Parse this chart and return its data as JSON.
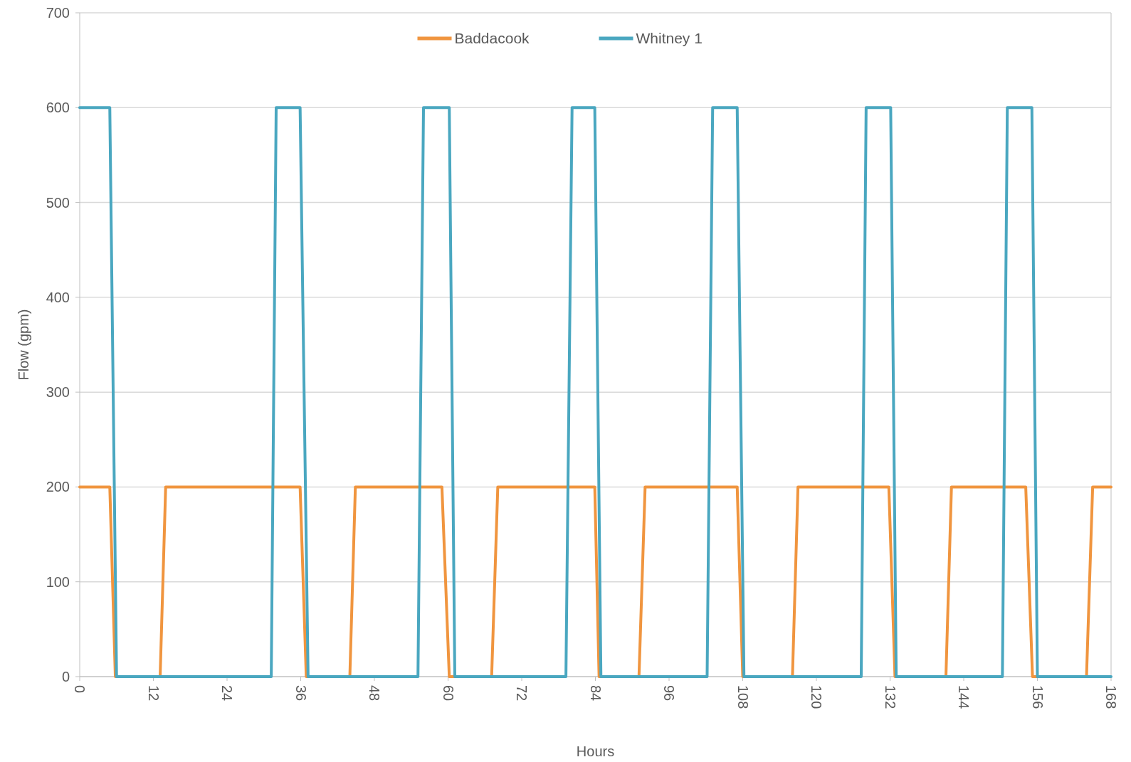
{
  "chart_data": {
    "type": "line",
    "xlabel": "Hours",
    "ylabel": "Flow (gpm)",
    "xlim": [
      0,
      168
    ],
    "xticks": [
      0,
      12,
      24,
      36,
      48,
      60,
      72,
      84,
      96,
      108,
      120,
      132,
      144,
      156,
      168
    ],
    "ylim": [
      0,
      700
    ],
    "yticks": [
      0,
      100,
      200,
      300,
      400,
      500,
      600,
      700
    ],
    "grid": "y",
    "legend": "top",
    "marker": "none",
    "line_style": "solid",
    "series": [
      {
        "name": "Baddacook",
        "color": "#f0953f",
        "x": [
          0,
          4.9,
          5.8,
          13.1,
          14,
          35.9,
          36.9,
          44,
          44.9,
          59,
          60.2,
          67.1,
          68.1,
          83.9,
          84.6,
          91.1,
          92.1,
          107.1,
          108,
          116.1,
          117,
          131.8,
          132.8,
          141.1,
          142,
          154.1,
          155.2,
          164,
          165,
          168
        ],
        "values": [
          200,
          200,
          0,
          0,
          200,
          200,
          0,
          0,
          200,
          200,
          0,
          0,
          200,
          200,
          0,
          0,
          200,
          200,
          0,
          0,
          200,
          200,
          0,
          0,
          200,
          200,
          0,
          0,
          200,
          200
        ]
      },
      {
        "name": "Whitney 1",
        "color": "#4aa7c0",
        "x": [
          0,
          4.9,
          6,
          31.2,
          32,
          35.9,
          37.2,
          55.1,
          56,
          60.2,
          61.1,
          79.2,
          80.2,
          83.9,
          84.9,
          102.2,
          103.1,
          107.1,
          108.2,
          127.3,
          128.1,
          132.1,
          133,
          150.3,
          151.1,
          155.1,
          156,
          168
        ],
        "values": [
          600,
          600,
          0,
          0,
          600,
          600,
          0,
          0,
          600,
          600,
          0,
          0,
          600,
          600,
          0,
          0,
          600,
          600,
          0,
          0,
          600,
          600,
          0,
          0,
          600,
          600,
          0,
          0
        ]
      }
    ]
  }
}
